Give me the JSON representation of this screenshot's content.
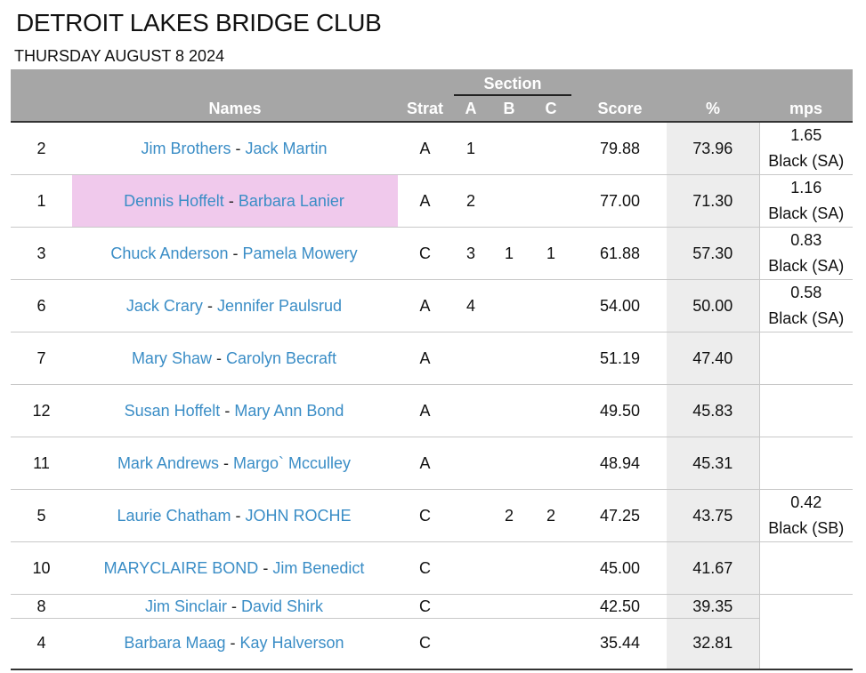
{
  "header": {
    "title": "DETROIT LAKES BRIDGE CLUB",
    "subtitle": "THURSDAY AUGUST 8 2024"
  },
  "columns": {
    "section": "Section",
    "names": "Names",
    "strat": "Strat",
    "a": "A",
    "b": "B",
    "c": "C",
    "score": "Score",
    "pct": "%",
    "mps": "mps"
  },
  "separator": "-",
  "highlight_color": "#f0c9ec",
  "rows": [
    {
      "num": "2",
      "p1": "Jim Brothers",
      "p2": "Jack Martin",
      "strat": "A",
      "a": "1",
      "b": "",
      "c": "",
      "score": "79.88",
      "pct": "73.96",
      "mps1": "1.65",
      "mps2": "Black (SA)"
    },
    {
      "num": "1",
      "p1": "Dennis Hoffelt",
      "p2": "Barbara Lanier",
      "strat": "A",
      "a": "2",
      "b": "",
      "c": "",
      "score": "77.00",
      "pct": "71.30",
      "mps1": "1.16",
      "mps2": "Black (SA)"
    },
    {
      "num": "3",
      "p1": "Chuck Anderson",
      "p2": "Pamela Mowery",
      "strat": "C",
      "a": "3",
      "b": "1",
      "c": "1",
      "score": "61.88",
      "pct": "57.30",
      "mps1": "0.83",
      "mps2": "Black (SA)"
    },
    {
      "num": "6",
      "p1": "Jack Crary",
      "p2": "Jennifer Paulsrud",
      "strat": "A",
      "a": "4",
      "b": "",
      "c": "",
      "score": "54.00",
      "pct": "50.00",
      "mps1": "0.58",
      "mps2": "Black (SA)"
    },
    {
      "num": "7",
      "p1": "Mary Shaw",
      "p2": "Carolyn Becraft",
      "strat": "A",
      "a": "",
      "b": "",
      "c": "",
      "score": "51.19",
      "pct": "47.40",
      "mps1": "",
      "mps2": ""
    },
    {
      "num": "12",
      "p1": "Susan Hoffelt",
      "p2": "Mary Ann Bond",
      "strat": "A",
      "a": "",
      "b": "",
      "c": "",
      "score": "49.50",
      "pct": "45.83",
      "mps1": "",
      "mps2": ""
    },
    {
      "num": "11",
      "p1": "Mark Andrews",
      "p2": "Margo` Mcculley",
      "strat": "A",
      "a": "",
      "b": "",
      "c": "",
      "score": "48.94",
      "pct": "45.31",
      "mps1": "",
      "mps2": ""
    },
    {
      "num": "5",
      "p1": "Laurie Chatham",
      "p2": "JOHN ROCHE",
      "strat": "C",
      "a": "",
      "b": "2",
      "c": "2",
      "score": "47.25",
      "pct": "43.75",
      "mps1": "0.42",
      "mps2": "Black (SB)"
    },
    {
      "num": "10",
      "p1": "MARYCLAIRE BOND",
      "p2": "Jim Benedict",
      "strat": "C",
      "a": "",
      "b": "",
      "c": "",
      "score": "45.00",
      "pct": "41.67",
      "mps1": "",
      "mps2": ""
    },
    {
      "num": "8",
      "p1": "Jim Sinclair",
      "p2": "David Shirk",
      "strat": "C",
      "a": "",
      "b": "",
      "c": "",
      "score": "42.50",
      "pct": "39.35",
      "mps1": "",
      "mps2": ""
    },
    {
      "num": "4",
      "p1": "Barbara Maag",
      "p2": "Kay Halverson",
      "strat": "C",
      "a": "",
      "b": "",
      "c": "",
      "score": "35.44",
      "pct": "32.81",
      "mps1": "",
      "mps2": ""
    }
  ]
}
